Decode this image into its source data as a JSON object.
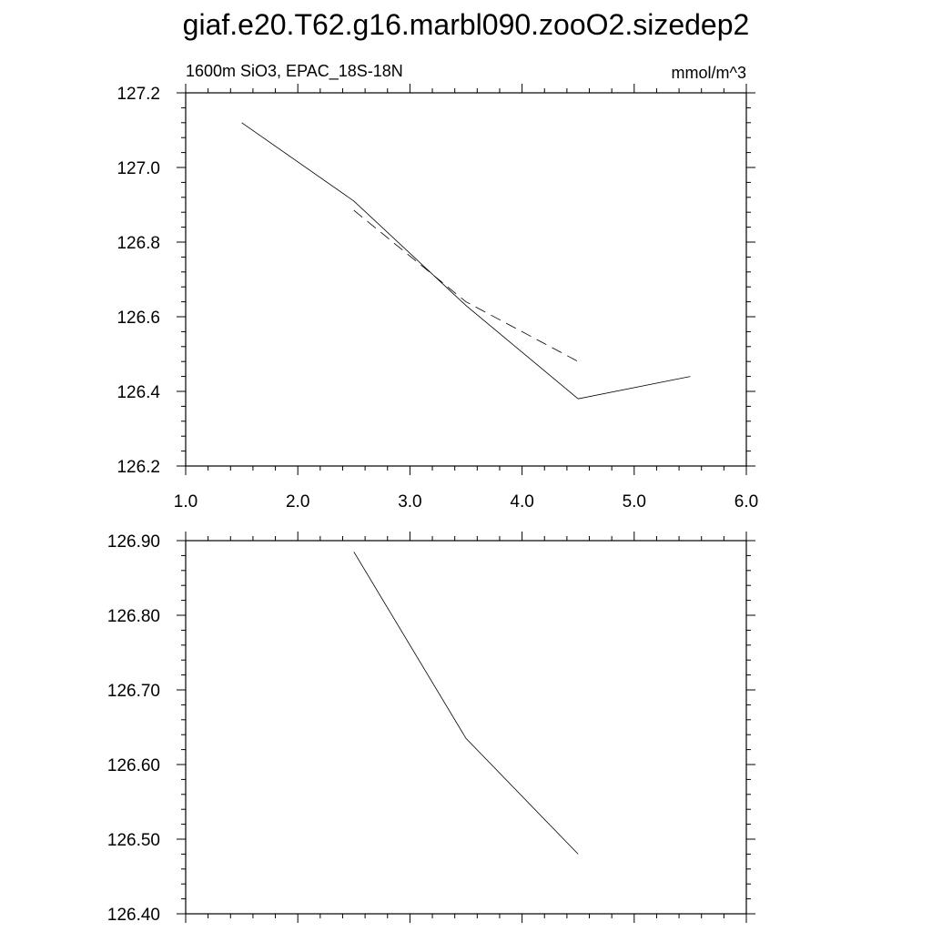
{
  "chart_data": [
    {
      "type": "line",
      "title": "giaf.e20.T62.g16.marbl090.zooO2.sizedep2",
      "subtitle_left": "1600m SiO3, EPAC_18S-18N",
      "subtitle_right": "mmol/m^3",
      "xlim": [
        1.0,
        6.0
      ],
      "ylim": [
        126.2,
        127.2
      ],
      "x_ticks": [
        1.0,
        2.0,
        3.0,
        4.0,
        5.0,
        6.0
      ],
      "x_tick_labels": [
        "1.0",
        "2.0",
        "3.0",
        "4.0",
        "5.0",
        "6.0"
      ],
      "y_ticks": [
        126.2,
        126.4,
        126.6,
        126.8,
        127.0,
        127.2
      ],
      "y_tick_labels": [
        "126.2",
        "126.4",
        "126.6",
        "126.8",
        "127.0",
        "127.2"
      ],
      "grid": false,
      "series": [
        {
          "style": "solid",
          "x": [
            1.5,
            2.5,
            3.5,
            4.5,
            5.5
          ],
          "y": [
            127.12,
            126.91,
            126.63,
            126.38,
            126.44
          ]
        },
        {
          "style": "dashed",
          "x": [
            2.5,
            3.5,
            4.5
          ],
          "y": [
            126.885,
            126.64,
            126.48
          ]
        }
      ]
    },
    {
      "type": "line",
      "xlim": [
        1.0,
        6.0
      ],
      "ylim": [
        126.4,
        126.9
      ],
      "x_ticks": [
        1.0,
        2.0,
        3.0,
        4.0,
        5.0,
        6.0
      ],
      "y_ticks": [
        126.4,
        126.5,
        126.6,
        126.7,
        126.8,
        126.9
      ],
      "y_tick_labels": [
        "126.40",
        "126.50",
        "126.60",
        "126.70",
        "126.80",
        "126.90"
      ],
      "grid": false,
      "series": [
        {
          "style": "solid",
          "x": [
            2.5,
            3.5,
            4.5
          ],
          "y": [
            126.885,
            126.635,
            126.48
          ]
        }
      ]
    }
  ]
}
